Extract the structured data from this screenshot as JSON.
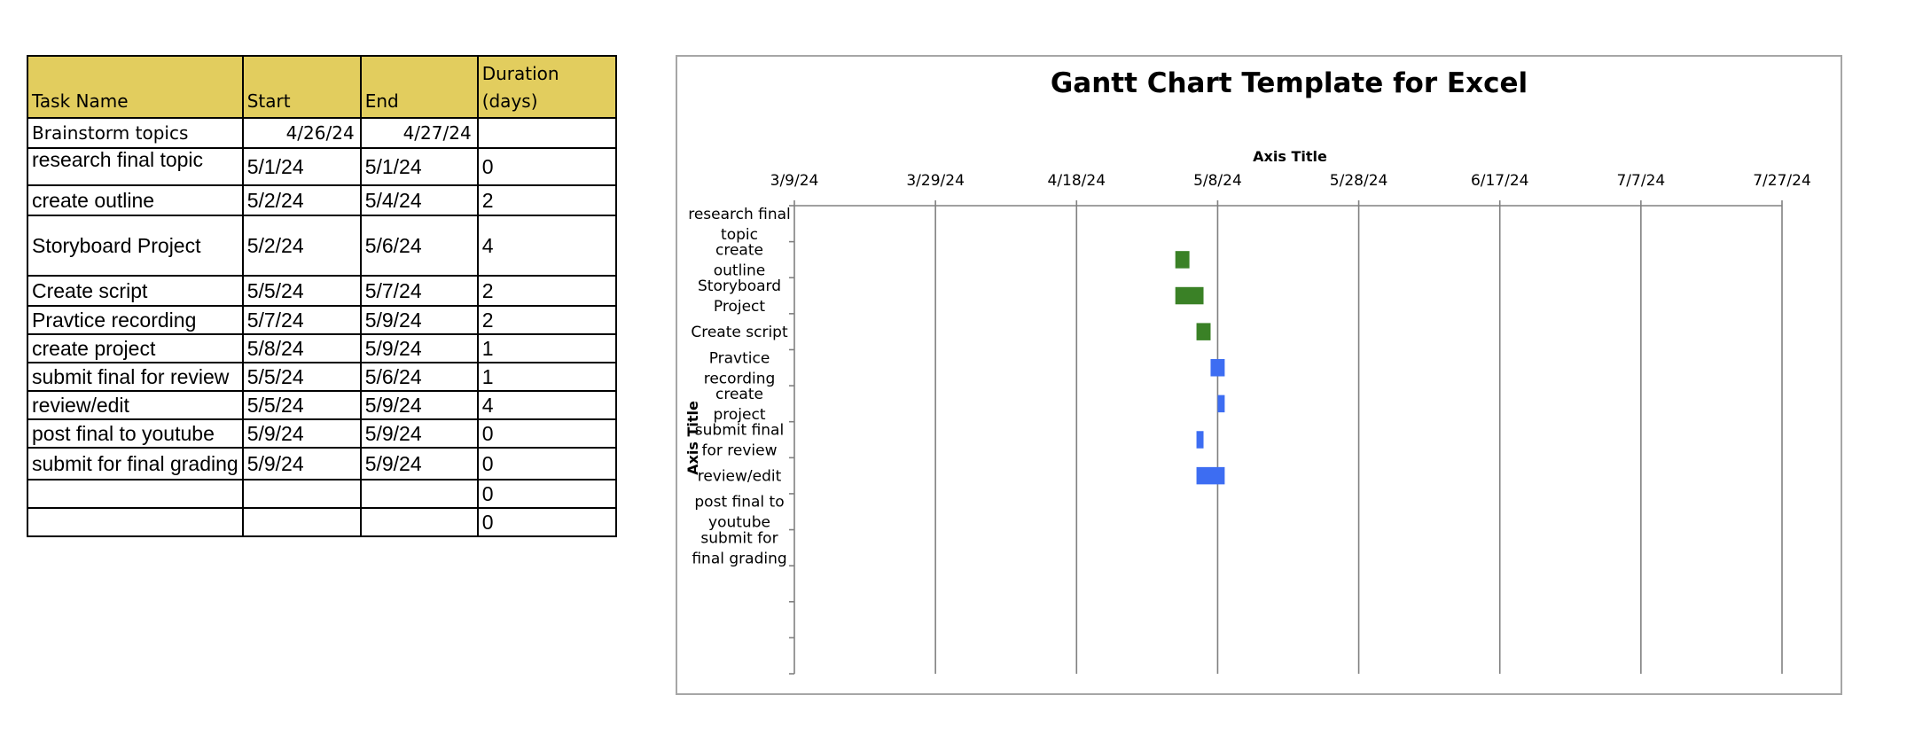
{
  "table": {
    "headers": [
      "Task Name",
      "Start",
      "End",
      "Duration (days)"
    ],
    "header_lines": [
      [
        "Task Name"
      ],
      [
        "Start"
      ],
      [
        "End"
      ],
      [
        "Duration",
        "(days)"
      ]
    ],
    "header_color": "#e2cd5e",
    "rows": [
      [
        "Brainstorm topics",
        "4/26/24",
        "4/27/24",
        ""
      ],
      [
        "research final topic",
        "5/1/24",
        "5/1/24",
        "0"
      ],
      [
        "create outline",
        "5/2/24",
        "5/4/24",
        "2"
      ],
      [
        "Storyboard Project",
        "5/2/24",
        "5/6/24",
        "4"
      ],
      [
        "Create script",
        "5/5/24",
        "5/7/24",
        "2"
      ],
      [
        "Pravtice recording",
        "5/7/24",
        "5/9/24",
        "2"
      ],
      [
        "create project",
        "5/8/24",
        "5/9/24",
        "1"
      ],
      [
        "submit final for review",
        "5/5/24",
        "5/6/24",
        "1"
      ],
      [
        "review/edit",
        "5/5/24",
        "5/9/24",
        "4"
      ],
      [
        "post final to youtube",
        "5/9/24",
        "5/9/24",
        "0"
      ],
      [
        "submit for final grading",
        "5/9/24",
        "5/9/24",
        "0"
      ],
      [
        "",
        "",
        "",
        "0"
      ],
      [
        "",
        "",
        "",
        "0"
      ]
    ]
  },
  "chart_data": {
    "type": "bar",
    "orientation": "horizontal-gantt",
    "title": "Gantt Chart Template for Excel",
    "xlabel": "Axis Title",
    "ylabel": "Axis Title",
    "x_axis_position": "top",
    "x_ticks": [
      "3/9/24",
      "3/29/24",
      "4/18/24",
      "5/8/24",
      "5/28/24",
      "6/17/24",
      "7/7/24",
      "7/27/24"
    ],
    "xlim": [
      "2024-03-09",
      "2024-07-27"
    ],
    "grid": true,
    "categories": [
      [
        "research final",
        "topic"
      ],
      [
        "create",
        "outline"
      ],
      [
        "Storyboard",
        "Project"
      ],
      [
        "Create script"
      ],
      [
        "Pravtice",
        "recording"
      ],
      [
        "create",
        "project"
      ],
      [
        "submit final",
        "for review"
      ],
      [
        "review/edit"
      ],
      [
        "post final to",
        "youtube"
      ],
      [
        "submit for",
        "final grading"
      ],
      [],
      [],
      []
    ],
    "tasks": [
      {
        "start": "2024-05-01",
        "end": "2024-05-01",
        "color": "#3a8126"
      },
      {
        "start": "2024-05-02",
        "end": "2024-05-04",
        "color": "#3a8126"
      },
      {
        "start": "2024-05-02",
        "end": "2024-05-06",
        "color": "#3a8126"
      },
      {
        "start": "2024-05-05",
        "end": "2024-05-07",
        "color": "#3a8126"
      },
      {
        "start": "2024-05-07",
        "end": "2024-05-09",
        "color": "#3d6df2"
      },
      {
        "start": "2024-05-08",
        "end": "2024-05-09",
        "color": "#3d6df2"
      },
      {
        "start": "2024-05-05",
        "end": "2024-05-06",
        "color": "#3d6df2"
      },
      {
        "start": "2024-05-05",
        "end": "2024-05-09",
        "color": "#3d6df2"
      },
      {
        "start": "2024-05-09",
        "end": "2024-05-09",
        "color": "#3d6df2"
      },
      {
        "start": "2024-05-09",
        "end": "2024-05-09",
        "color": "#3d6df2"
      },
      {
        "start": "",
        "end": "",
        "color": "#3d6df2"
      },
      {
        "start": "",
        "end": "",
        "color": "#3d6df2"
      },
      {
        "start": "",
        "end": "",
        "color": "#3d6df2"
      }
    ],
    "colors": {
      "completed": "#3a8126",
      "upcoming": "#3d6df2",
      "gridline": "#808080",
      "frame": "#a6a6a6"
    }
  }
}
